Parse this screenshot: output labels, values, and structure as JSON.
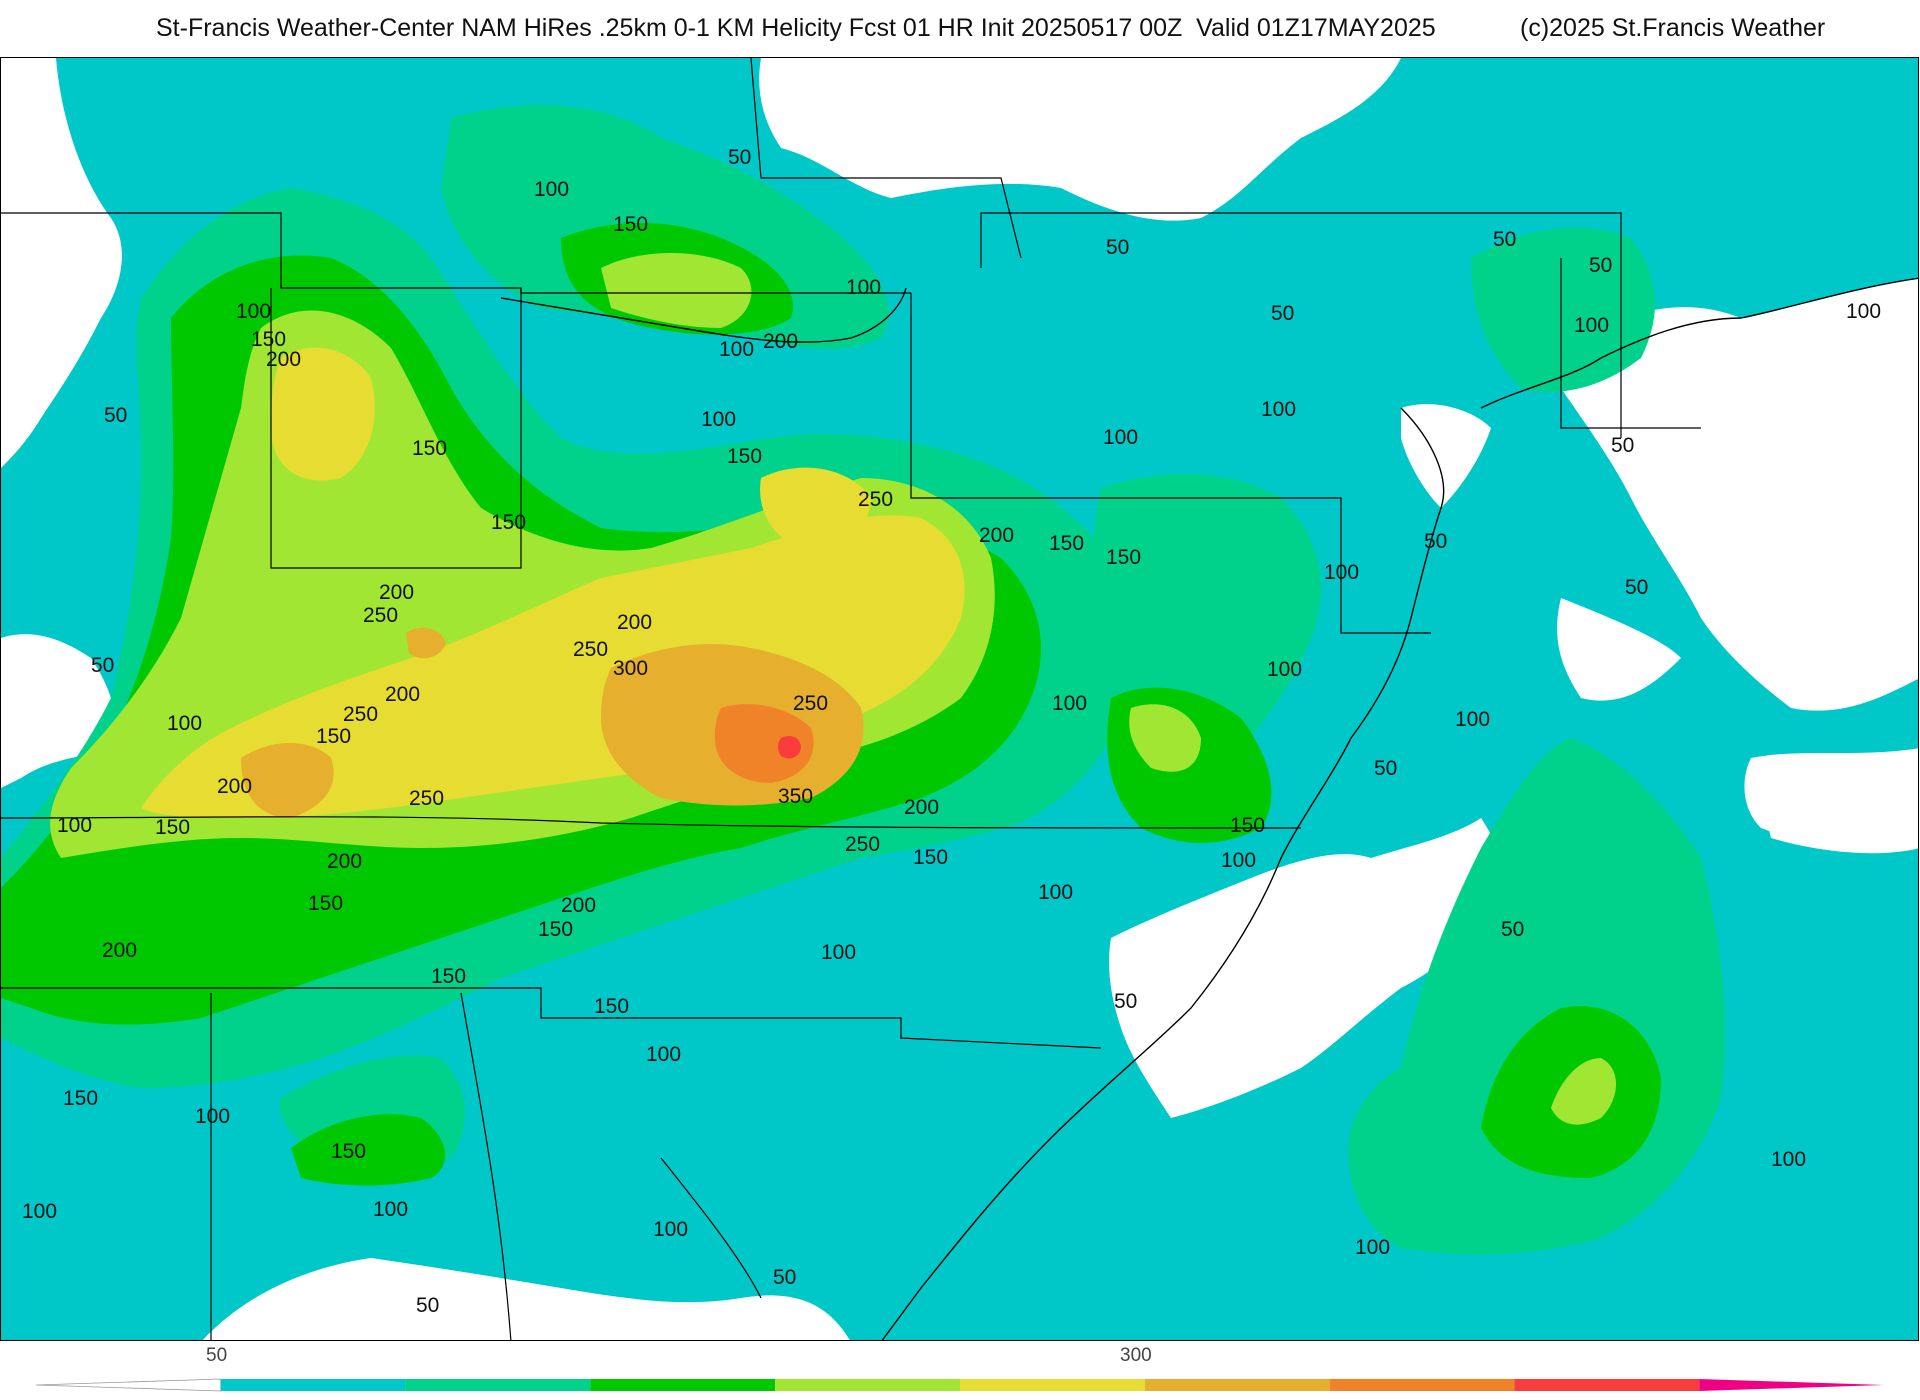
{
  "header": {
    "title": "St-Francis Weather-Center NAM HiRes .25km 0-1 KM Helicity Fcst 01 HR Init 20250517 00Z  Valid 01Z17MAY2025",
    "copyright": "(c)2025 St.Francis Weather"
  },
  "map": {
    "contour_labels": [
      "50",
      "100",
      "150",
      "200",
      "250",
      "300",
      "350"
    ],
    "colors": {
      "land_background": "#ffffff",
      "lt_50": "#ffffff",
      "c50": "#00c8c8",
      "c100": "#00d28c",
      "c150": "#00c800",
      "c200": "#a0e632",
      "c250": "#e6dc32",
      "c300": "#e6af2d",
      "c350": "#f08228",
      "c400": "#fa3c3c",
      "c450": "#f00082",
      "borders": "#000000"
    }
  },
  "colorbar": {
    "tick_labels": [
      "50",
      "300"
    ],
    "segments": [
      "#ffffff",
      "#00c8c8",
      "#00d28c",
      "#00c800",
      "#a0e632",
      "#e6dc32",
      "#e6af2d",
      "#f08228",
      "#fa3c3c",
      "#f00082"
    ]
  }
}
